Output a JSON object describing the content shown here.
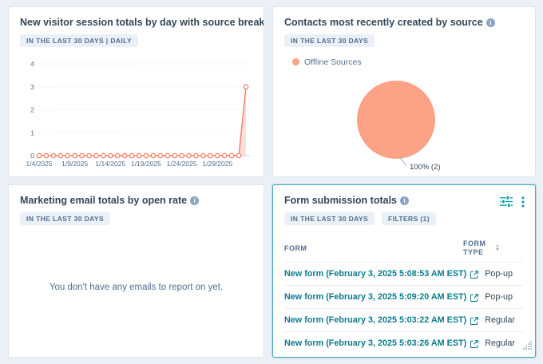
{
  "colors": {
    "background": "#eaf0f6",
    "card_border": "#dde4ed",
    "selected_card_border": "#4ba9bd",
    "title_text": "#33475b",
    "badge_bg": "#eaf0f6",
    "badge_text": "#506e91",
    "muted_text": "#516f90",
    "link": "#0b7c8e",
    "accent_teal": "#0f9bb0",
    "series_coral": "#f4836c",
    "pie_salmon": "#fca287"
  },
  "cards": {
    "sessions": {
      "title": "New visitor session totals by day with source breakd…",
      "badge": "IN THE LAST 30 DAYS | DAILY"
    },
    "contacts": {
      "title": "Contacts most recently created by source",
      "badge": "IN THE LAST 30 DAYS"
    },
    "emails": {
      "title": "Marketing email totals by open rate",
      "badge": "IN THE LAST 30 DAYS",
      "empty_message": "You don't have any emails to report on yet."
    },
    "forms": {
      "title": "Form submission totals",
      "badges": [
        "IN THE LAST 30 DAYS",
        "FILTERS (1)"
      ],
      "table": {
        "columns": [
          "FORM",
          "FORM TYPE"
        ],
        "rows": [
          {
            "form": "New form (February 3, 2025 5:08:53 AM EST)",
            "type": "Pop-up"
          },
          {
            "form": "New form (February 3, 2025 5:09:20 AM EST)",
            "type": "Pop-up"
          },
          {
            "form": "New form (February 3, 2025 5:03:22 AM EST)",
            "type": "Regular"
          },
          {
            "form": "New form (February 3, 2025 5:03:26 AM EST)",
            "type": "Regular"
          }
        ]
      }
    }
  },
  "chart_data": [
    {
      "type": "line",
      "title": "New visitor session totals by day with source breakdown",
      "x": [
        "1/4/2025",
        "1/5/2025",
        "1/6/2025",
        "1/7/2025",
        "1/8/2025",
        "1/9/2025",
        "1/10/2025",
        "1/11/2025",
        "1/12/2025",
        "1/13/2025",
        "1/14/2025",
        "1/15/2025",
        "1/16/2025",
        "1/17/2025",
        "1/18/2025",
        "1/19/2025",
        "1/20/2025",
        "1/21/2025",
        "1/22/2025",
        "1/23/2025",
        "1/24/2025",
        "1/25/2025",
        "1/26/2025",
        "1/27/2025",
        "1/28/2025",
        "1/29/2025",
        "1/30/2025",
        "1/31/2025",
        "2/1/2025",
        "2/2/2025"
      ],
      "values": [
        0,
        0,
        0,
        0,
        0,
        0,
        0,
        0,
        0,
        0,
        0,
        0,
        0,
        0,
        0,
        0,
        0,
        0,
        0,
        0,
        0,
        0,
        0,
        0,
        0,
        0,
        0,
        0,
        0,
        3
      ],
      "x_tick_labels": [
        "1/4/2025",
        "1/9/2025",
        "1/14/2025",
        "1/19/2025",
        "1/24/2025",
        "1/29/2025"
      ],
      "ylim": [
        0,
        4
      ],
      "yticks": [
        0,
        1,
        2,
        3,
        4
      ],
      "series_color": "#f4836c",
      "marker": "open-circle",
      "grid": true,
      "legend_position": "none"
    },
    {
      "type": "pie",
      "title": "Contacts most recently created by source",
      "labels": [
        "Offline Sources"
      ],
      "values": [
        2
      ],
      "percentages": [
        100
      ],
      "slice_label": "100% (2)",
      "color": "#fca287",
      "legend_position": "top-left"
    }
  ]
}
